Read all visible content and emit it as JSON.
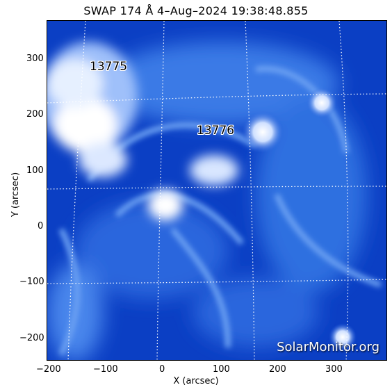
{
  "title": "SWAP 174 Å  4–Aug–2024 19:38:48.855",
  "xlabel": "X (arcsec)",
  "ylabel": "Y (arcsec)",
  "x_ticks": [
    "−200",
    "−100",
    "0",
    "100",
    "200",
    "300"
  ],
  "y_ticks": [
    "300",
    "200",
    "100",
    "0",
    "−100",
    "−200"
  ],
  "regions": [
    {
      "label": "13775"
    },
    {
      "label": "13776"
    }
  ],
  "watermark": "SolarMonitor.org",
  "colors": {
    "background": "#0b3fc4",
    "bright": "#ffffff",
    "mid": "#5f96f0",
    "grid": "#ffffff"
  }
}
